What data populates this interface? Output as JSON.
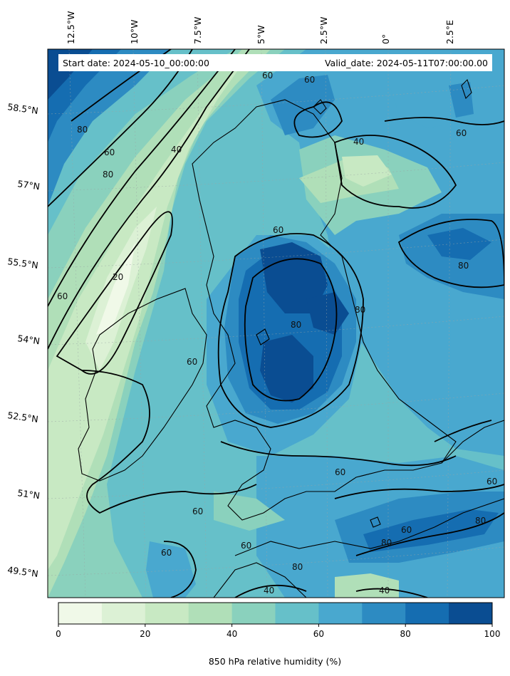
{
  "header": {
    "start_date": "Start date: 2024-05-10_00:00:00",
    "valid_date": "Valid_date: 2024-05-11T07:00:00.00"
  },
  "longitude_labels": [
    "12.5°W",
    "10°W",
    "7.5°W",
    "5°W",
    "2.5°W",
    "0°",
    "2.5°E"
  ],
  "latitude_labels": [
    "58.5°N",
    "57°N",
    "55.5°N",
    "54°N",
    "52.5°N",
    "51°N",
    "49.5°N"
  ],
  "contour_labels": [
    "60",
    "60",
    "80",
    "60",
    "80",
    "40",
    "40",
    "60",
    "60",
    "20",
    "60",
    "60",
    "80",
    "80",
    "80",
    "80",
    "60",
    "60",
    "60",
    "80",
    "60",
    "60",
    "60",
    "80",
    "40",
    "40"
  ],
  "colorbar": {
    "label": "850 hPa relative humidity (%)",
    "ticks": [
      "0",
      "20",
      "40",
      "60",
      "80",
      "100"
    ],
    "levels": [
      0,
      10,
      20,
      30,
      40,
      50,
      60,
      70,
      80,
      90,
      100
    ],
    "colors": [
      "#f0f9e8",
      "#dcf1d5",
      "#c8e9c3",
      "#b0dfb8",
      "#8ad1bd",
      "#66c0c9",
      "#49a8cf",
      "#2d8bc2",
      "#156db1",
      "#0a4d92"
    ]
  },
  "map_colors": {
    "land_outline": "#000000",
    "contour": "#000000",
    "gridline": "#9aa5a5"
  }
}
